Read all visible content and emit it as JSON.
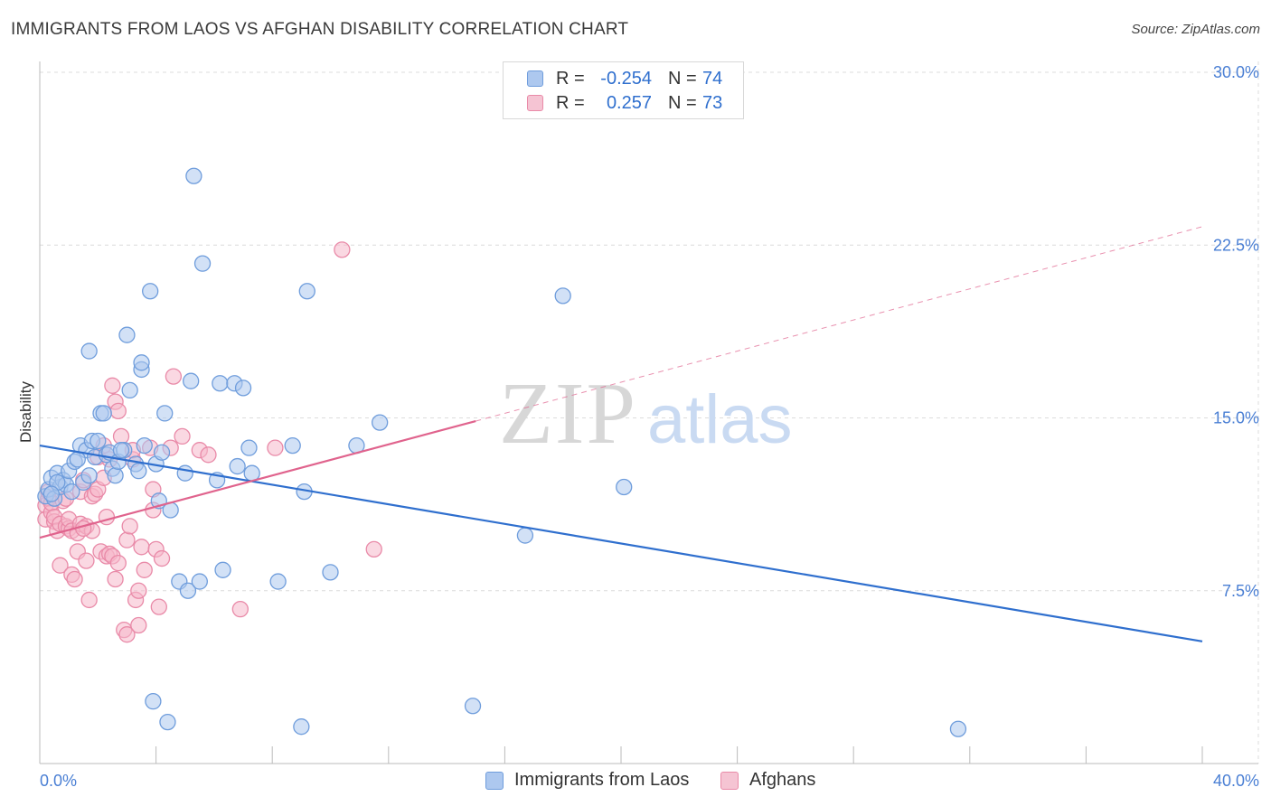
{
  "title": "IMMIGRANTS FROM LAOS VS AFGHAN DISABILITY CORRELATION CHART",
  "source": "Source: ZipAtlas.com",
  "watermark": {
    "zip": "ZIP",
    "atlas": "atlas"
  },
  "legend": {
    "rows": [
      {
        "r_label": "R =",
        "r_value": "-0.254",
        "n_label": "N =",
        "n_value": "74"
      },
      {
        "r_label": "R =",
        "r_value": "0.257",
        "n_label": "N =",
        "n_value": "73"
      }
    ]
  },
  "colors": {
    "blue_fill": "#adc8ef",
    "blue_stroke": "#6f9ddc",
    "blue_line": "#2f6fce",
    "pink_fill": "#f5b8cb",
    "pink_stroke": "#e98aa8",
    "pink_line": "#e0638d",
    "grid": "#dcdcdc",
    "axis_text": "#4a7fd4"
  },
  "chart_data": {
    "type": "scatter",
    "title": "IMMIGRANTS FROM LAOS VS AFGHAN DISABILITY CORRELATION CHART",
    "xlabel": "",
    "ylabel": "Disability",
    "xlim": [
      0,
      40
    ],
    "ylim": [
      0,
      30
    ],
    "x_tick_labels": [
      "0.0%",
      "40.0%"
    ],
    "y_ticks": [
      7.5,
      15.0,
      22.5,
      30.0
    ],
    "y_tick_labels": [
      "7.5%",
      "15.0%",
      "22.5%",
      "30.0%"
    ],
    "grid": true,
    "legend_position": "bottom",
    "series": [
      {
        "name": "Immigrants from Laos",
        "color": "#6f9ddc",
        "trend": {
          "x": [
            0,
            40
          ],
          "y": [
            13.8,
            5.3
          ],
          "dashed_after": null
        },
        "points": [
          [
            0.2,
            11.6
          ],
          [
            0.3,
            11.9
          ],
          [
            0.4,
            12.4
          ],
          [
            0.5,
            11.5
          ],
          [
            0.6,
            12.6
          ],
          [
            0.7,
            12.0
          ],
          [
            0.8,
            12.3
          ],
          [
            0.9,
            12.1
          ],
          [
            1.0,
            12.7
          ],
          [
            1.1,
            11.8
          ],
          [
            1.2,
            13.1
          ],
          [
            1.4,
            13.8
          ],
          [
            1.5,
            12.2
          ],
          [
            1.6,
            13.6
          ],
          [
            1.7,
            12.5
          ],
          [
            1.8,
            14.0
          ],
          [
            1.9,
            13.3
          ],
          [
            2.1,
            15.2
          ],
          [
            2.2,
            15.2
          ],
          [
            2.3,
            13.4
          ],
          [
            2.4,
            13.5
          ],
          [
            2.5,
            12.8
          ],
          [
            2.6,
            12.5
          ],
          [
            2.7,
            13.1
          ],
          [
            2.9,
            13.6
          ],
          [
            3.0,
            18.6
          ],
          [
            3.1,
            16.2
          ],
          [
            3.3,
            13.0
          ],
          [
            3.4,
            12.7
          ],
          [
            3.5,
            17.1
          ],
          [
            3.5,
            17.4
          ],
          [
            3.6,
            13.8
          ],
          [
            3.8,
            20.5
          ],
          [
            4.0,
            13.0
          ],
          [
            4.1,
            11.4
          ],
          [
            4.2,
            13.5
          ],
          [
            4.3,
            15.2
          ],
          [
            4.5,
            11.0
          ],
          [
            4.8,
            7.9
          ],
          [
            5.0,
            12.6
          ],
          [
            5.1,
            7.5
          ],
          [
            5.2,
            16.6
          ],
          [
            5.3,
            25.5
          ],
          [
            5.5,
            7.9
          ],
          [
            5.6,
            21.7
          ],
          [
            6.1,
            12.3
          ],
          [
            6.2,
            16.5
          ],
          [
            6.3,
            8.4
          ],
          [
            6.7,
            16.5
          ],
          [
            6.8,
            12.9
          ],
          [
            7.0,
            16.3
          ],
          [
            7.2,
            13.7
          ],
          [
            7.3,
            12.6
          ],
          [
            8.2,
            7.9
          ],
          [
            8.7,
            13.8
          ],
          [
            9.0,
            1.6
          ],
          [
            9.1,
            11.8
          ],
          [
            9.2,
            20.5
          ],
          [
            10.0,
            8.3
          ],
          [
            10.9,
            13.8
          ],
          [
            11.7,
            14.8
          ],
          [
            14.9,
            2.5
          ],
          [
            16.7,
            9.9
          ],
          [
            18.0,
            20.3
          ],
          [
            20.1,
            12.0
          ],
          [
            31.6,
            1.5
          ],
          [
            1.7,
            17.9
          ],
          [
            3.9,
            2.7
          ],
          [
            4.4,
            1.8
          ],
          [
            0.6,
            12.2
          ],
          [
            2.8,
            13.6
          ],
          [
            1.3,
            13.2
          ],
          [
            0.4,
            11.7
          ],
          [
            2.0,
            14.0
          ]
        ]
      },
      {
        "name": "Afghans",
        "color": "#e98aa8",
        "trend": {
          "x": [
            0,
            40
          ],
          "y": [
            9.8,
            23.3
          ],
          "dashed_after": 15.0
        },
        "points": [
          [
            0.2,
            11.2
          ],
          [
            0.2,
            10.6
          ],
          [
            0.3,
            11.5
          ],
          [
            0.3,
            11.8
          ],
          [
            0.4,
            10.9
          ],
          [
            0.4,
            11.3
          ],
          [
            0.5,
            10.5
          ],
          [
            0.5,
            10.7
          ],
          [
            0.6,
            10.1
          ],
          [
            0.7,
            10.4
          ],
          [
            0.7,
            8.6
          ],
          [
            0.8,
            11.4
          ],
          [
            0.9,
            10.3
          ],
          [
            1.0,
            10.2
          ],
          [
            1.0,
            10.6
          ],
          [
            1.1,
            8.2
          ],
          [
            1.1,
            10.1
          ],
          [
            1.2,
            8.0
          ],
          [
            1.3,
            9.2
          ],
          [
            1.3,
            10.0
          ],
          [
            1.4,
            11.8
          ],
          [
            1.4,
            10.4
          ],
          [
            1.5,
            12.3
          ],
          [
            1.6,
            10.3
          ],
          [
            1.6,
            8.8
          ],
          [
            1.7,
            7.1
          ],
          [
            1.8,
            10.1
          ],
          [
            1.8,
            11.6
          ],
          [
            1.9,
            11.7
          ],
          [
            2.0,
            11.9
          ],
          [
            2.0,
            13.3
          ],
          [
            2.1,
            9.2
          ],
          [
            2.2,
            12.4
          ],
          [
            2.3,
            10.7
          ],
          [
            2.3,
            9.0
          ],
          [
            2.4,
            9.1
          ],
          [
            2.4,
            13.2
          ],
          [
            2.5,
            16.4
          ],
          [
            2.5,
            9.0
          ],
          [
            2.6,
            15.7
          ],
          [
            2.6,
            8.0
          ],
          [
            2.7,
            8.7
          ],
          [
            2.7,
            15.3
          ],
          [
            2.8,
            14.2
          ],
          [
            2.9,
            5.8
          ],
          [
            3.0,
            9.7
          ],
          [
            3.0,
            5.6
          ],
          [
            3.1,
            10.3
          ],
          [
            3.2,
            13.2
          ],
          [
            3.3,
            7.1
          ],
          [
            3.4,
            6.0
          ],
          [
            3.4,
            7.5
          ],
          [
            3.5,
            9.4
          ],
          [
            3.6,
            8.4
          ],
          [
            3.8,
            13.7
          ],
          [
            3.9,
            11.0
          ],
          [
            3.9,
            11.9
          ],
          [
            4.0,
            9.3
          ],
          [
            4.1,
            6.8
          ],
          [
            4.2,
            8.9
          ],
          [
            4.5,
            13.7
          ],
          [
            4.6,
            16.8
          ],
          [
            4.9,
            14.2
          ],
          [
            5.5,
            13.6
          ],
          [
            5.8,
            13.4
          ],
          [
            6.9,
            6.7
          ],
          [
            8.1,
            13.7
          ],
          [
            10.4,
            22.3
          ],
          [
            11.5,
            9.3
          ],
          [
            3.2,
            13.6
          ],
          [
            2.2,
            13.8
          ],
          [
            0.9,
            11.5
          ],
          [
            1.5,
            10.2
          ]
        ]
      }
    ]
  },
  "bottom_legend": [
    {
      "label": "Immigrants from Laos"
    },
    {
      "label": "Afghans"
    }
  ]
}
